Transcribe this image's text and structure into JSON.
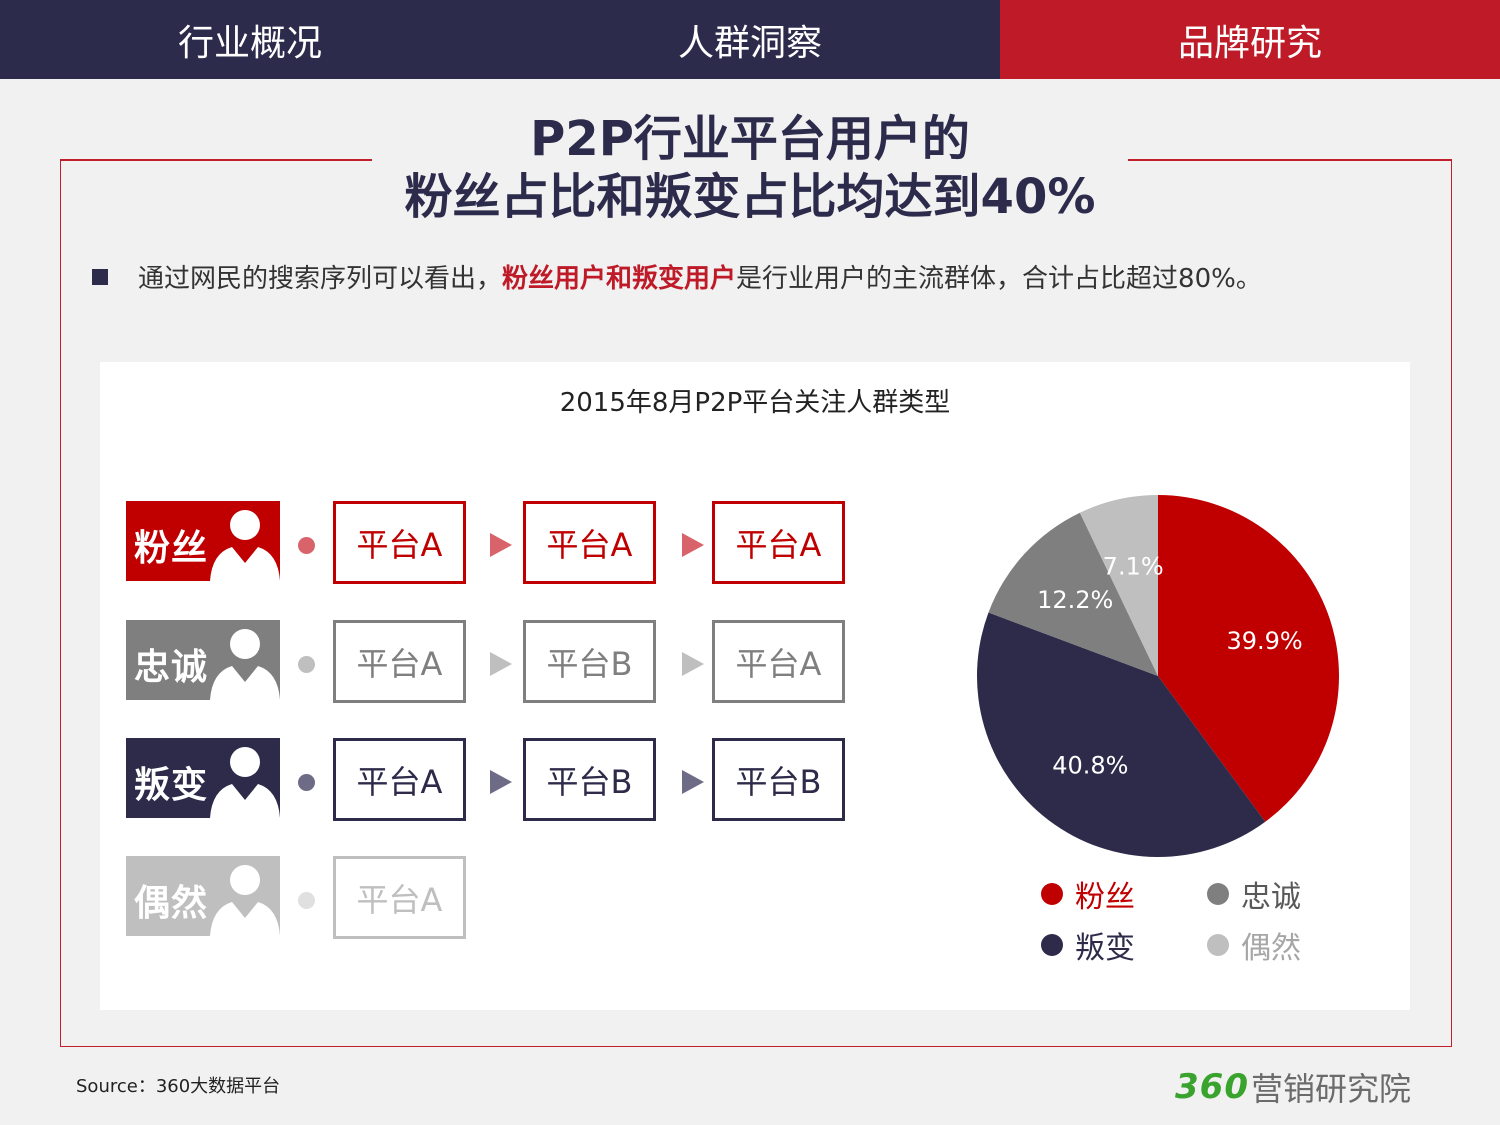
{
  "nav": {
    "tabs": [
      {
        "label": "行业概况",
        "active": false
      },
      {
        "label": "人群洞察",
        "active": false
      },
      {
        "label": "品牌研究",
        "active": true
      }
    ]
  },
  "headline": {
    "line1": "P2P行业平台用户的",
    "line2": "粉丝占比和叛变占比均达到40%"
  },
  "bullet": {
    "prefix": "通过网民的搜索序列可以看出，",
    "highlight": "粉丝用户和叛变用户",
    "suffix": "是行业用户的主流群体，合计占比超过80%。"
  },
  "flow": {
    "rows": [
      {
        "persona": "粉丝",
        "color": "#c00000",
        "steps": [
          "平台A",
          "平台A",
          "平台A"
        ]
      },
      {
        "persona": "忠诚",
        "color": "#7f7f7f",
        "steps": [
          "平台A",
          "平台B",
          "平台A"
        ]
      },
      {
        "persona": "叛变",
        "color": "#2e2b4a",
        "steps": [
          "平台A",
          "平台B",
          "平台B"
        ]
      },
      {
        "persona": "偶然",
        "color": "#bfbfbf",
        "steps": [
          "平台A"
        ]
      }
    ]
  },
  "chart_data": {
    "type": "pie",
    "title": "2015年8月P2P平台关注人群类型",
    "slices": [
      {
        "label": "粉丝",
        "value": 39.9,
        "display": "39.9%",
        "color": "#c00000"
      },
      {
        "label": "叛变",
        "value": 40.8,
        "display": "40.8%",
        "color": "#2e2b4a"
      },
      {
        "label": "忠诚",
        "value": 12.2,
        "display": "12.2%",
        "color": "#7f7f7f"
      },
      {
        "label": "偶然",
        "value": 7.1,
        "display": "7.1%",
        "color": "#bfbfbf"
      }
    ],
    "start_angle": "12 o'clock",
    "direction": "clockwise",
    "legend": [
      {
        "label": "粉丝",
        "color": "#c00000"
      },
      {
        "label": "忠诚",
        "color": "#7f7f7f"
      },
      {
        "label": "叛变",
        "color": "#2e2b4a"
      },
      {
        "label": "偶然",
        "color": "#bfbfbf"
      }
    ],
    "legend_position": "bottom"
  },
  "source": "Source：360大数据平台",
  "logo": {
    "number": "360",
    "text": "营销研究院"
  }
}
